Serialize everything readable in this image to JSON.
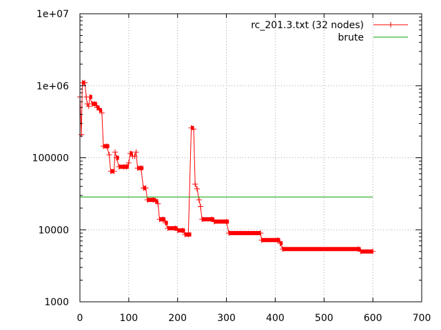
{
  "chart_data": {
    "type": "line",
    "title": "",
    "xlabel": "",
    "ylabel": "",
    "xlim": [
      0,
      700
    ],
    "ylim": [
      1000,
      10000000
    ],
    "y_scale": "log",
    "grid": true,
    "legend_position": "top-right",
    "x_ticks": [
      "0",
      "100",
      "200",
      "300",
      "400",
      "500",
      "600",
      "700"
    ],
    "y_ticks": [
      "1000",
      "10000",
      "100000",
      "1e+06",
      "1e+07"
    ],
    "series": [
      {
        "name": "rc_201.3.txt (32 nodes)",
        "color": "#ff0000",
        "style": "steps-with-crosses",
        "points": [
          [
            0,
            700000
          ],
          [
            3,
            210000
          ],
          [
            5,
            1100000
          ],
          [
            10,
            1100000
          ],
          [
            13,
            700000
          ],
          [
            15,
            560000
          ],
          [
            18,
            520000
          ],
          [
            20,
            700000
          ],
          [
            25,
            560000
          ],
          [
            30,
            560000
          ],
          [
            35,
            500000
          ],
          [
            40,
            460000
          ],
          [
            45,
            420000
          ],
          [
            48,
            145000
          ],
          [
            55,
            145000
          ],
          [
            60,
            110000
          ],
          [
            63,
            65000
          ],
          [
            70,
            65000
          ],
          [
            72,
            120000
          ],
          [
            75,
            100000
          ],
          [
            80,
            75000
          ],
          [
            90,
            75000
          ],
          [
            95,
            75000
          ],
          [
            100,
            85000
          ],
          [
            103,
            115000
          ],
          [
            108,
            105000
          ],
          [
            112,
            105000
          ],
          [
            115,
            120000
          ],
          [
            118,
            72000
          ],
          [
            125,
            72000
          ],
          [
            130,
            38000
          ],
          [
            135,
            38000
          ],
          [
            138,
            26000
          ],
          [
            150,
            26000
          ],
          [
            155,
            25000
          ],
          [
            160,
            23000
          ],
          [
            163,
            14000
          ],
          [
            170,
            14000
          ],
          [
            175,
            12500
          ],
          [
            180,
            10500
          ],
          [
            195,
            10500
          ],
          [
            200,
            9800
          ],
          [
            210,
            9800
          ],
          [
            215,
            8600
          ],
          [
            222,
            8600
          ],
          [
            228,
            260000
          ],
          [
            233,
            250000
          ],
          [
            236,
            43000
          ],
          [
            240,
            37000
          ],
          [
            244,
            26000
          ],
          [
            247,
            21000
          ],
          [
            250,
            14000
          ],
          [
            270,
            14000
          ],
          [
            275,
            13000
          ],
          [
            300,
            13000
          ],
          [
            305,
            9000
          ],
          [
            370,
            9000
          ],
          [
            372,
            7200
          ],
          [
            405,
            7200
          ],
          [
            410,
            6500
          ],
          [
            415,
            5400
          ],
          [
            570,
            5400
          ],
          [
            575,
            5000
          ],
          [
            600,
            5000
          ]
        ]
      },
      {
        "name": "brute",
        "color": "#00a000",
        "style": "line",
        "points": [
          [
            0,
            28500
          ],
          [
            600,
            28500
          ]
        ]
      }
    ]
  }
}
